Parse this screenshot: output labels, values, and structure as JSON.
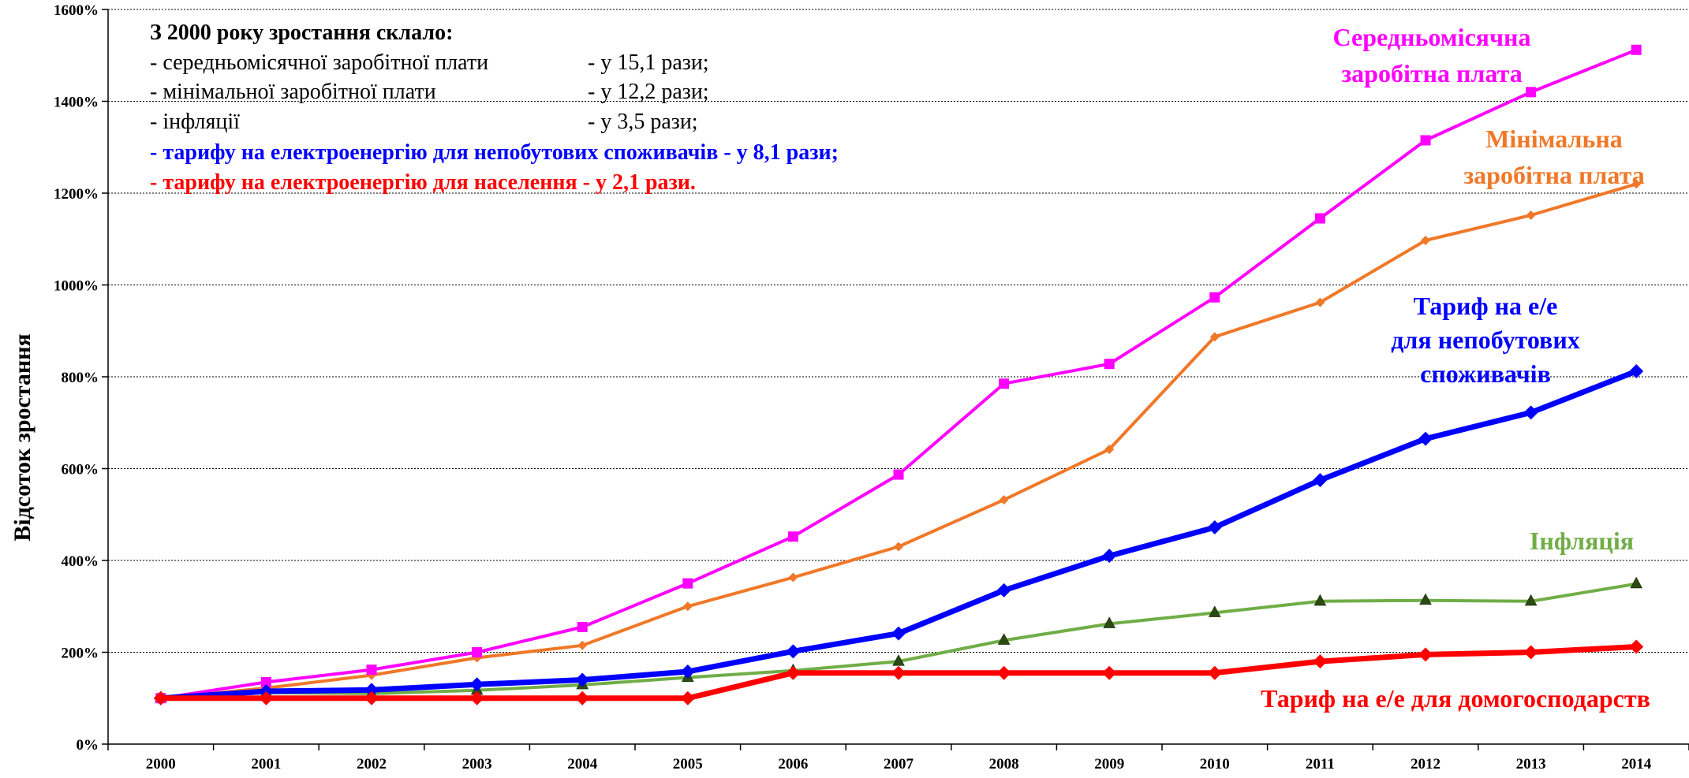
{
  "chart_data": {
    "type": "line",
    "title": "",
    "xlabel": "",
    "ylabel": "Відсоток зростання",
    "ylim": [
      0,
      1600
    ],
    "y_tick_step": 200,
    "y_tick_suffix": "%",
    "grid": "horizontal-dashed",
    "legend": "none (inline labels)",
    "categories": [
      "2000",
      "2001",
      "2002",
      "2003",
      "2004",
      "2005",
      "2006",
      "2007",
      "2008",
      "2009",
      "2010",
      "2011",
      "2012",
      "2013",
      "2014"
    ],
    "series": [
      {
        "name": "Середньомісячна заробітна плата",
        "label_lines": [
          "Середньомісячна",
          "заробітна плата"
        ],
        "color": "#ff00ff",
        "marker": "square",
        "values": [
          100,
          135,
          162,
          200,
          255,
          350,
          452,
          587,
          785,
          828,
          973,
          1145,
          1315,
          1420,
          1512
        ]
      },
      {
        "name": "Мінімальна заробітна плата",
        "label_lines": [
          "Мінімальна",
          "заробітна плата"
        ],
        "color": "#f07828",
        "marker": "diamond-small",
        "values": [
          100,
          122,
          150,
          188,
          215,
          300,
          363,
          430,
          532,
          642,
          887,
          962,
          1097,
          1152,
          1220
        ]
      },
      {
        "name": "Тариф на е/е для непобутових споживачів",
        "label_lines": [
          "Тариф на е/е",
          "для непобутових",
          "споживачів"
        ],
        "color": "#0000ff",
        "marker": "diamond",
        "values": [
          100,
          115,
          118,
          130,
          140,
          158,
          202,
          241,
          335,
          410,
          472,
          575,
          665,
          722,
          812
        ]
      },
      {
        "name": "Інфляція",
        "label_lines": [
          "Інфляція"
        ],
        "color": "#70ad47",
        "marker": "triangle",
        "values": [
          100,
          112,
          110,
          117,
          129,
          145,
          160,
          180,
          226,
          262,
          286,
          311,
          313,
          311,
          349
        ]
      },
      {
        "name": "Тариф на е/е для домогосподарств",
        "label_lines": [
          "Тариф на е/е для домогосподарств"
        ],
        "color": "#ff0000",
        "marker": "diamond",
        "values": [
          100,
          100,
          100,
          100,
          100,
          100,
          155,
          155,
          155,
          155,
          155,
          180,
          195,
          200,
          212
        ]
      }
    ],
    "annotations": {
      "heading": "З 2000 року зростання склало:",
      "rows": [
        {
          "prefix": "-   ",
          "label": "середньомісячної заробітної плати",
          "value": "- у 15,1 рази;",
          "color": "#000000"
        },
        {
          "prefix": "-   ",
          "label": "мінімальної заробітної плати",
          "value": "- у 12,2 рази;",
          "color": "#000000"
        },
        {
          "prefix": "- ",
          "label": "інфляції",
          "value": "- у  3,5 рази;",
          "color": "#000000"
        },
        {
          "prefix": "",
          "label": "- тарифу на електроенергію для непобутових споживачів  - у  8,1 рази;",
          "value": "",
          "color": "#0000ff"
        },
        {
          "prefix": "",
          "label": "- тарифу на електроенергію для населення - у 2,1 рази.",
          "value": "",
          "color": "#ff0000"
        }
      ]
    }
  }
}
